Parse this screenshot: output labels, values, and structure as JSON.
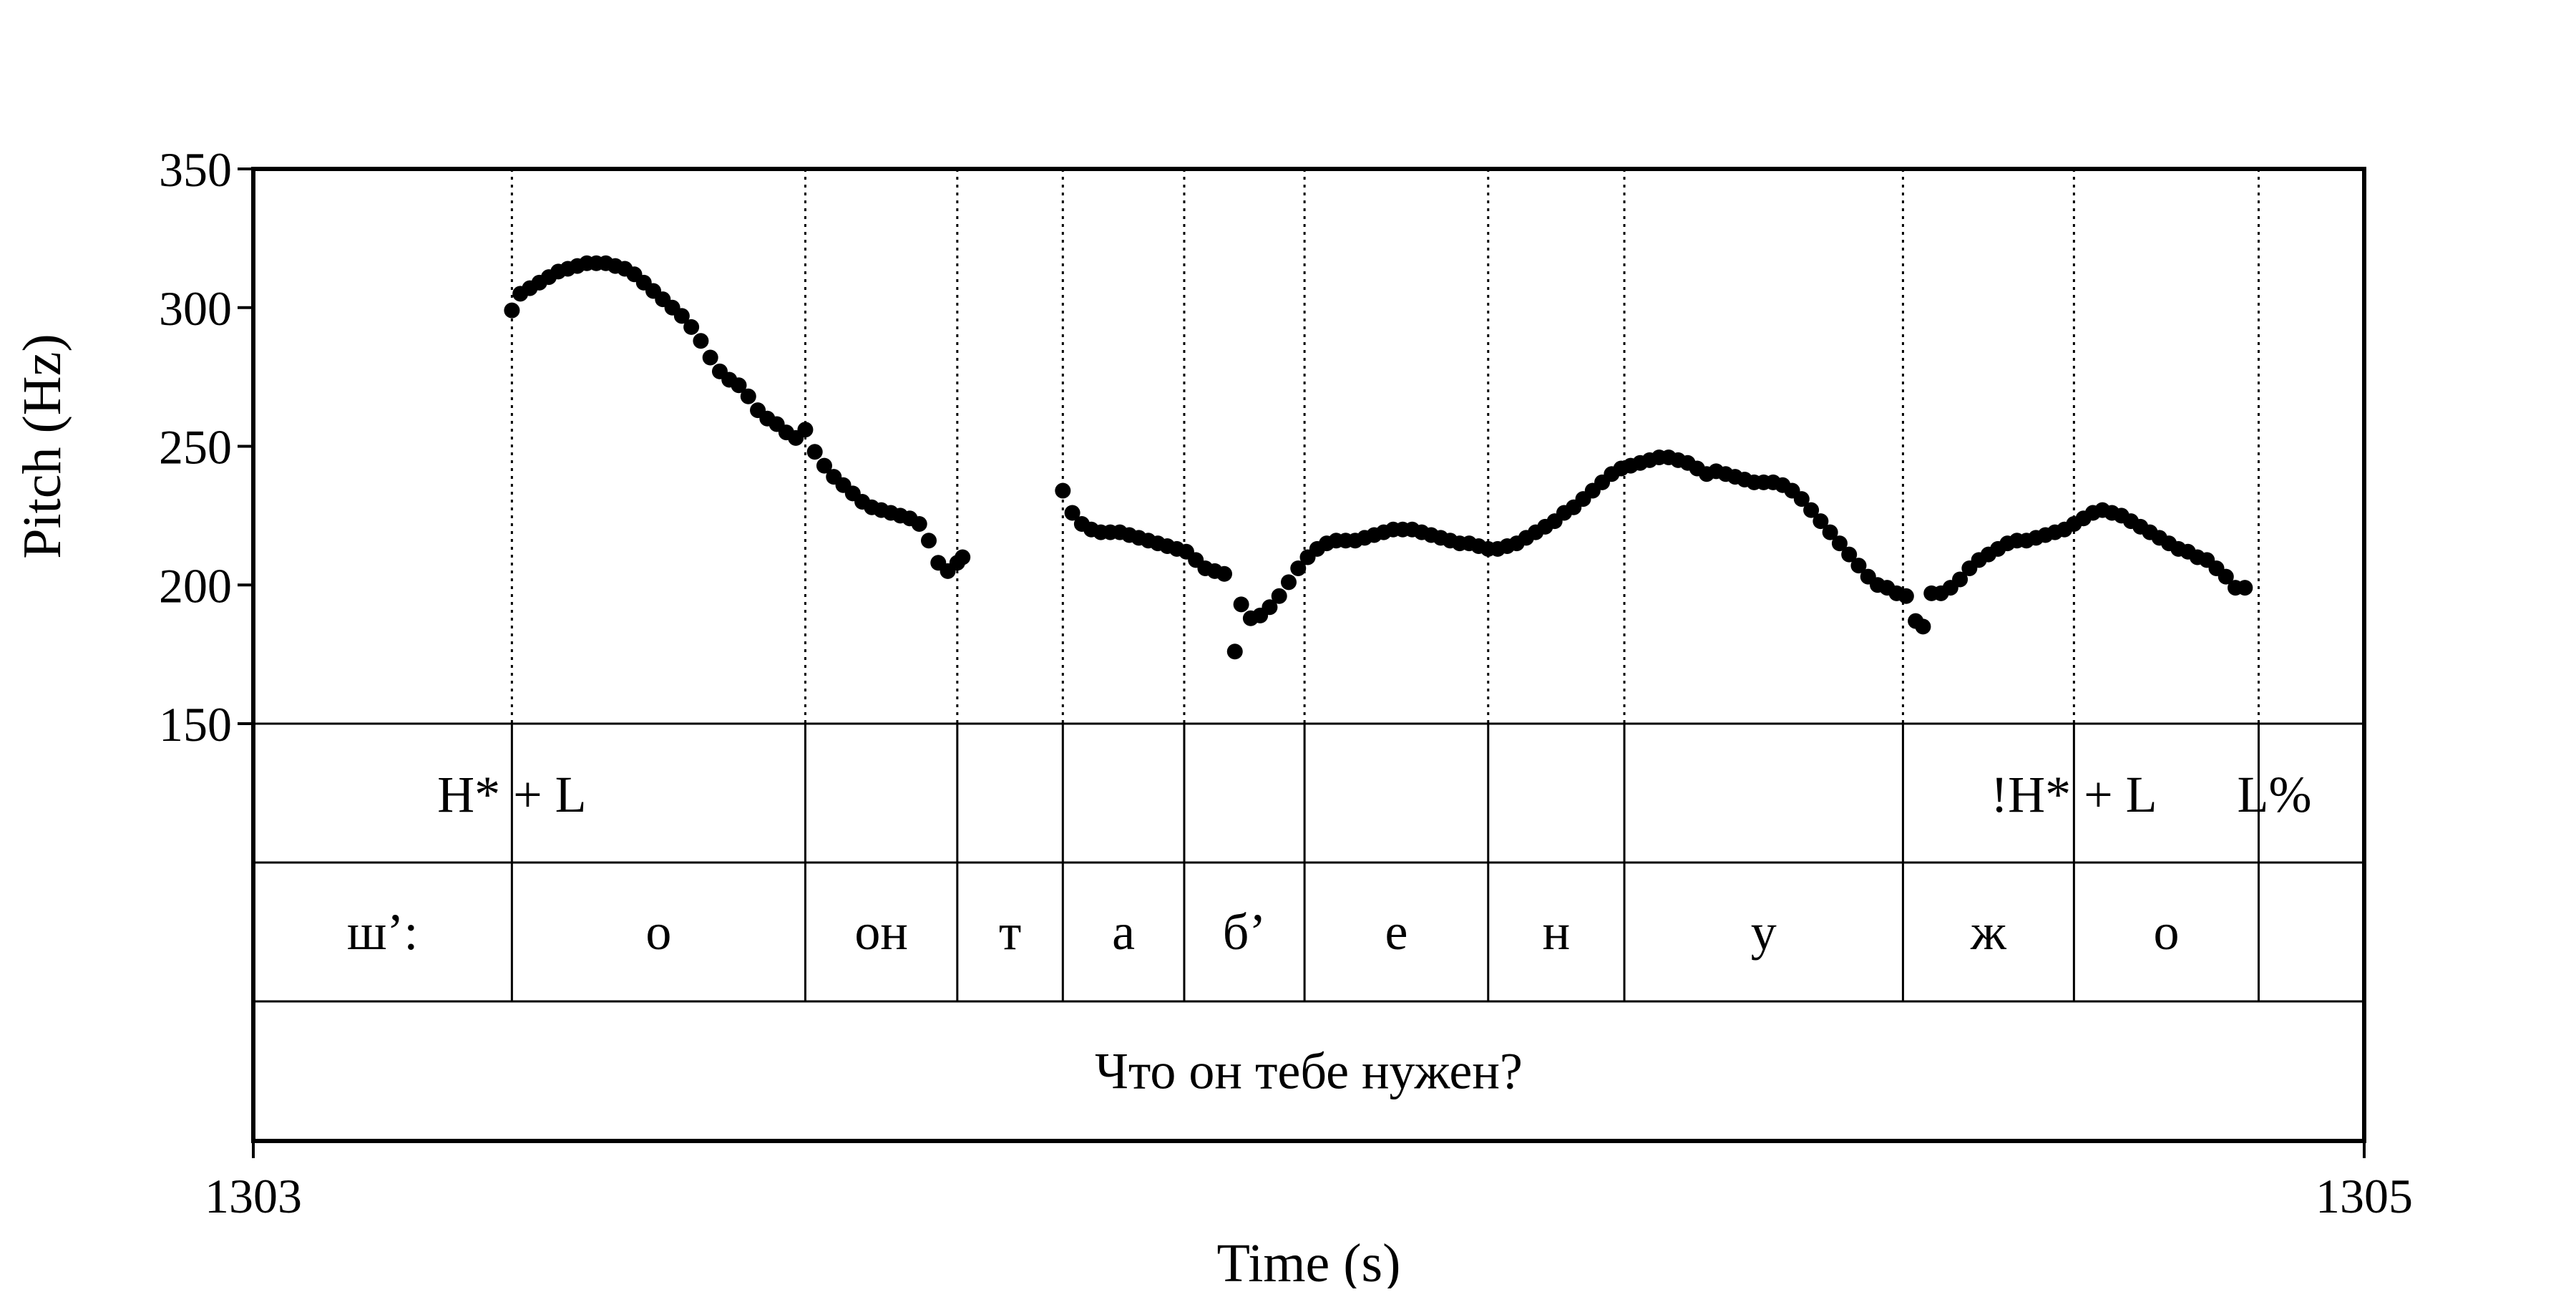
{
  "chart_data": {
    "type": "scatter",
    "title": "",
    "xlabel": "Time (s)",
    "ylabel": "Pitch (Hz)",
    "xlim": [
      1303,
      1305
    ],
    "ylim": [
      150,
      350
    ],
    "x_ticks": [
      {
        "value": 1303,
        "label": "1303"
      },
      {
        "value": 1305,
        "label": "1305"
      }
    ],
    "y_ticks": [
      {
        "value": 150,
        "label": "150"
      },
      {
        "value": 200,
        "label": "200"
      },
      {
        "value": 250,
        "label": "250"
      },
      {
        "value": 300,
        "label": "300"
      },
      {
        "value": 350,
        "label": "350"
      }
    ],
    "grid": false,
    "boundaries": [
      1303.245,
      1303.523,
      1303.667,
      1303.767,
      1303.882,
      1303.996,
      1304.17,
      1304.299,
      1304.563,
      1304.725,
      1304.9
    ],
    "tones": [
      {
        "t": 1303.245,
        "label": "H* + L"
      },
      {
        "t": 1304.725,
        "label": "!H* + L"
      },
      {
        "t": 1304.9,
        "label": "L%"
      }
    ],
    "phones": [
      {
        "start": 1303.0,
        "end": 1303.245,
        "label": "ш’:"
      },
      {
        "start": 1303.245,
        "end": 1303.523,
        "label": "о"
      },
      {
        "start": 1303.523,
        "end": 1303.667,
        "label": "он"
      },
      {
        "start": 1303.667,
        "end": 1303.767,
        "label": "т"
      },
      {
        "start": 1303.767,
        "end": 1303.882,
        "label": "а"
      },
      {
        "start": 1303.882,
        "end": 1303.996,
        "label": "б’"
      },
      {
        "start": 1303.996,
        "end": 1304.17,
        "label": "е"
      },
      {
        "start": 1304.17,
        "end": 1304.299,
        "label": "н"
      },
      {
        "start": 1304.299,
        "end": 1304.563,
        "label": "у"
      },
      {
        "start": 1304.563,
        "end": 1304.725,
        "label": "ж"
      },
      {
        "start": 1304.725,
        "end": 1304.9,
        "label": "о"
      },
      {
        "start": 1304.9,
        "end": 1305.0,
        "label": ""
      }
    ],
    "sentence": "Что он тебе нужен?",
    "pitch_segments": [
      {
        "name": "",
        "points": [
          [
            1303.245,
            299
          ],
          [
            1303.253,
            305
          ],
          [
            1303.262,
            307
          ],
          [
            1303.271,
            309
          ],
          [
            1303.28,
            311
          ],
          [
            1303.289,
            313
          ],
          [
            1303.298,
            314
          ],
          [
            1303.307,
            315
          ],
          [
            1303.316,
            316
          ],
          [
            1303.325,
            316
          ],
          [
            1303.334,
            316
          ],
          [
            1303.343,
            315
          ],
          [
            1303.352,
            314
          ],
          [
            1303.361,
            312
          ],
          [
            1303.37,
            309
          ],
          [
            1303.379,
            306
          ],
          [
            1303.388,
            303
          ],
          [
            1303.397,
            300
          ],
          [
            1303.406,
            297
          ],
          [
            1303.415,
            293
          ],
          [
            1303.424,
            288
          ],
          [
            1303.433,
            282
          ],
          [
            1303.442,
            277
          ],
          [
            1303.451,
            274
          ],
          [
            1303.46,
            272
          ],
          [
            1303.469,
            268
          ],
          [
            1303.478,
            263
          ],
          [
            1303.487,
            260
          ],
          [
            1303.496,
            258
          ],
          [
            1303.505,
            255
          ],
          [
            1303.514,
            253
          ],
          [
            1303.523,
            256
          ],
          [
            1303.532,
            248
          ],
          [
            1303.541,
            243
          ],
          [
            1303.55,
            239
          ],
          [
            1303.559,
            236
          ],
          [
            1303.568,
            233
          ],
          [
            1303.577,
            230
          ],
          [
            1303.586,
            228
          ],
          [
            1303.595,
            227
          ],
          [
            1303.604,
            226
          ],
          [
            1303.613,
            225
          ],
          [
            1303.622,
            224
          ],
          [
            1303.631,
            222
          ],
          [
            1303.64,
            216
          ],
          [
            1303.649,
            208
          ],
          [
            1303.658,
            205
          ],
          [
            1303.667,
            208
          ],
          [
            1303.672,
            210
          ]
        ]
      },
      {
        "name": "",
        "points": [
          [
            1303.767,
            234
          ],
          [
            1303.776,
            226
          ],
          [
            1303.785,
            222
          ],
          [
            1303.794,
            220
          ],
          [
            1303.803,
            219
          ],
          [
            1303.812,
            219
          ],
          [
            1303.821,
            219
          ],
          [
            1303.83,
            218
          ],
          [
            1303.839,
            217
          ],
          [
            1303.848,
            216
          ],
          [
            1303.857,
            215
          ],
          [
            1303.866,
            214
          ],
          [
            1303.875,
            213
          ],
          [
            1303.884,
            212
          ],
          [
            1303.893,
            209
          ],
          [
            1303.902,
            206
          ],
          [
            1303.911,
            205
          ],
          [
            1303.92,
            204
          ],
          [
            1303.93,
            176
          ],
          [
            1303.936,
            193
          ],
          [
            1303.945,
            188
          ],
          [
            1303.954,
            189
          ],
          [
            1303.963,
            192
          ],
          [
            1303.972,
            196
          ],
          [
            1303.981,
            201
          ],
          [
            1303.99,
            206
          ],
          [
            1303.999,
            210
          ],
          [
            1304.008,
            213
          ],
          [
            1304.017,
            215
          ],
          [
            1304.026,
            216
          ],
          [
            1304.035,
            216
          ],
          [
            1304.044,
            216
          ],
          [
            1304.053,
            217
          ],
          [
            1304.062,
            218
          ],
          [
            1304.071,
            219
          ],
          [
            1304.08,
            220
          ],
          [
            1304.089,
            220
          ],
          [
            1304.098,
            220
          ],
          [
            1304.107,
            219
          ],
          [
            1304.116,
            218
          ],
          [
            1304.125,
            217
          ],
          [
            1304.134,
            216
          ],
          [
            1304.143,
            215
          ],
          [
            1304.152,
            215
          ],
          [
            1304.161,
            214
          ],
          [
            1304.17,
            213
          ],
          [
            1304.179,
            213
          ],
          [
            1304.188,
            214
          ],
          [
            1304.197,
            215
          ],
          [
            1304.206,
            217
          ],
          [
            1304.215,
            219
          ],
          [
            1304.224,
            221
          ],
          [
            1304.233,
            223
          ],
          [
            1304.242,
            226
          ],
          [
            1304.251,
            228
          ],
          [
            1304.26,
            231
          ],
          [
            1304.269,
            234
          ],
          [
            1304.278,
            237
          ],
          [
            1304.287,
            240
          ],
          [
            1304.296,
            242
          ],
          [
            1304.305,
            243
          ],
          [
            1304.314,
            244
          ],
          [
            1304.323,
            245
          ],
          [
            1304.332,
            246
          ],
          [
            1304.341,
            246
          ],
          [
            1304.35,
            245
          ],
          [
            1304.359,
            244
          ],
          [
            1304.368,
            242
          ],
          [
            1304.377,
            240
          ],
          [
            1304.386,
            241
          ],
          [
            1304.395,
            240
          ],
          [
            1304.404,
            239
          ],
          [
            1304.413,
            238
          ],
          [
            1304.422,
            237
          ],
          [
            1304.431,
            237
          ],
          [
            1304.44,
            237
          ],
          [
            1304.449,
            236
          ],
          [
            1304.458,
            234
          ],
          [
            1304.467,
            231
          ],
          [
            1304.476,
            227
          ],
          [
            1304.485,
            223
          ],
          [
            1304.494,
            219
          ],
          [
            1304.503,
            215
          ],
          [
            1304.512,
            211
          ],
          [
            1304.521,
            207
          ],
          [
            1304.53,
            203
          ],
          [
            1304.539,
            200
          ],
          [
            1304.548,
            199
          ],
          [
            1304.557,
            197
          ],
          [
            1304.566,
            196
          ],
          [
            1304.575,
            187
          ],
          [
            1304.582,
            185
          ],
          [
            1304.59,
            197
          ],
          [
            1304.599,
            197
          ],
          [
            1304.608,
            199
          ],
          [
            1304.617,
            202
          ],
          [
            1304.626,
            206
          ],
          [
            1304.635,
            209
          ],
          [
            1304.644,
            211
          ],
          [
            1304.653,
            213
          ],
          [
            1304.662,
            215
          ],
          [
            1304.671,
            216
          ],
          [
            1304.68,
            216
          ],
          [
            1304.689,
            217
          ],
          [
            1304.698,
            218
          ],
          [
            1304.707,
            219
          ],
          [
            1304.716,
            220
          ],
          [
            1304.725,
            222
          ],
          [
            1304.734,
            224
          ],
          [
            1304.743,
            226
          ],
          [
            1304.752,
            227
          ],
          [
            1304.761,
            226
          ],
          [
            1304.77,
            225
          ],
          [
            1304.779,
            223
          ],
          [
            1304.788,
            221
          ],
          [
            1304.797,
            219
          ],
          [
            1304.806,
            217
          ],
          [
            1304.815,
            215
          ],
          [
            1304.824,
            213
          ],
          [
            1304.833,
            212
          ],
          [
            1304.842,
            210
          ],
          [
            1304.851,
            209
          ],
          [
            1304.86,
            206
          ],
          [
            1304.869,
            203
          ],
          [
            1304.878,
            199
          ],
          [
            1304.887,
            199
          ]
        ]
      }
    ]
  }
}
